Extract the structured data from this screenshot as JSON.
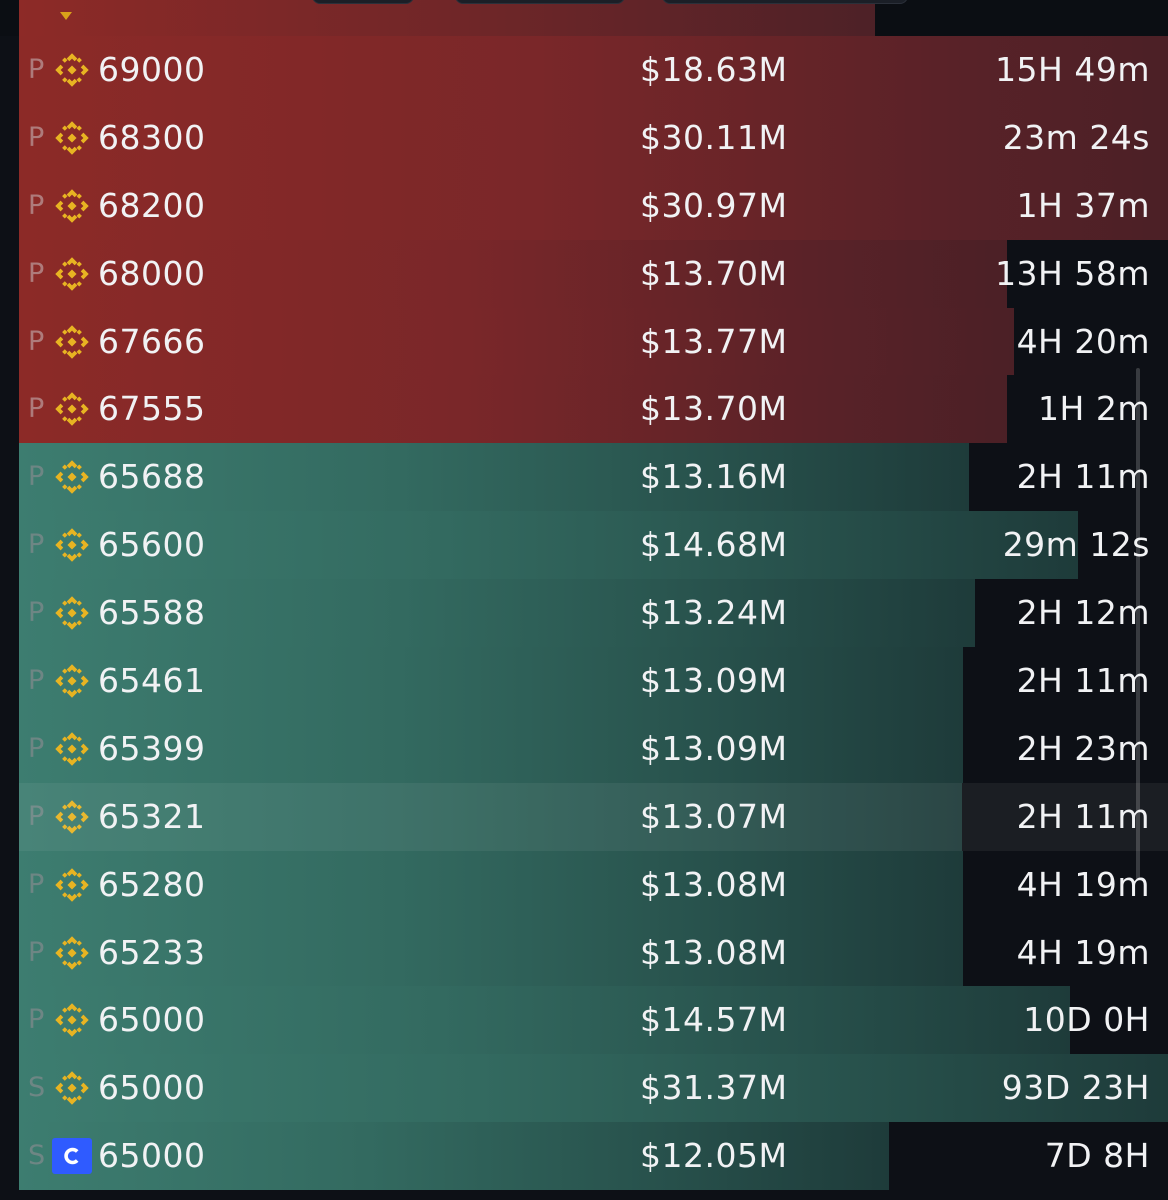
{
  "colors": {
    "ask": "#8c2a27",
    "bid": "#3d7d70",
    "background": "#0d1016",
    "binance": "#e8b422",
    "coinbase": "#2f5bff"
  },
  "icons": {
    "binance": "binance-logo-icon",
    "coinbase": "coinbase-logo-icon"
  },
  "rows": [
    {
      "side": "ask",
      "type": "P",
      "exchange": "binance",
      "price": "69000",
      "amount": "$18.63M",
      "time": "15H 49m",
      "fill": 1.0
    },
    {
      "side": "ask",
      "type": "P",
      "exchange": "binance",
      "price": "68300",
      "amount": "$30.11M",
      "time": "23m 24s",
      "fill": 1.0
    },
    {
      "side": "ask",
      "type": "P",
      "exchange": "binance",
      "price": "68200",
      "amount": "$30.97M",
      "time": "1H 37m",
      "fill": 1.0
    },
    {
      "side": "ask",
      "type": "P",
      "exchange": "binance",
      "price": "68000",
      "amount": "$13.70M",
      "time": "13H 58m",
      "fill": 0.86
    },
    {
      "side": "ask",
      "type": "P",
      "exchange": "binance",
      "price": "67666",
      "amount": "$13.77M",
      "time": "4H 20m",
      "fill": 0.866
    },
    {
      "side": "ask",
      "type": "P",
      "exchange": "binance",
      "price": "67555",
      "amount": "$13.70M",
      "time": "1H 2m",
      "fill": 0.86
    },
    {
      "side": "bid",
      "type": "P",
      "exchange": "binance",
      "price": "65688",
      "amount": "$13.16M",
      "time": "2H 11m",
      "fill": 0.827
    },
    {
      "side": "bid",
      "type": "P",
      "exchange": "binance",
      "price": "65600",
      "amount": "$14.68M",
      "time": "29m 12s",
      "fill": 0.922
    },
    {
      "side": "bid",
      "type": "P",
      "exchange": "binance",
      "price": "65588",
      "amount": "$13.24M",
      "time": "2H 12m",
      "fill": 0.832
    },
    {
      "side": "bid",
      "type": "P",
      "exchange": "binance",
      "price": "65461",
      "amount": "$13.09M",
      "time": "2H 11m",
      "fill": 0.822
    },
    {
      "side": "bid",
      "type": "P",
      "exchange": "binance",
      "price": "65399",
      "amount": "$13.09M",
      "time": "2H 23m",
      "fill": 0.822
    },
    {
      "side": "bid",
      "type": "P",
      "exchange": "binance",
      "price": "65321",
      "amount": "$13.07M",
      "time": "2H 11m",
      "fill": 0.821,
      "hovered": true
    },
    {
      "side": "bid",
      "type": "P",
      "exchange": "binance",
      "price": "65280",
      "amount": "$13.08M",
      "time": "4H 19m",
      "fill": 0.822
    },
    {
      "side": "bid",
      "type": "P",
      "exchange": "binance",
      "price": "65233",
      "amount": "$13.08M",
      "time": "4H 19m",
      "fill": 0.822
    },
    {
      "side": "bid",
      "type": "P",
      "exchange": "binance",
      "price": "65000",
      "amount": "$14.57M",
      "time": "10D 0H",
      "fill": 0.915
    },
    {
      "side": "bid",
      "type": "S",
      "exchange": "binance",
      "price": "65000",
      "amount": "$31.37M",
      "time": "93D 23H",
      "fill": 1.0
    },
    {
      "side": "bid",
      "type": "S",
      "exchange": "coinbase",
      "price": "65000",
      "amount": "$12.05M",
      "time": "7D 8H",
      "fill": 0.757
    }
  ]
}
